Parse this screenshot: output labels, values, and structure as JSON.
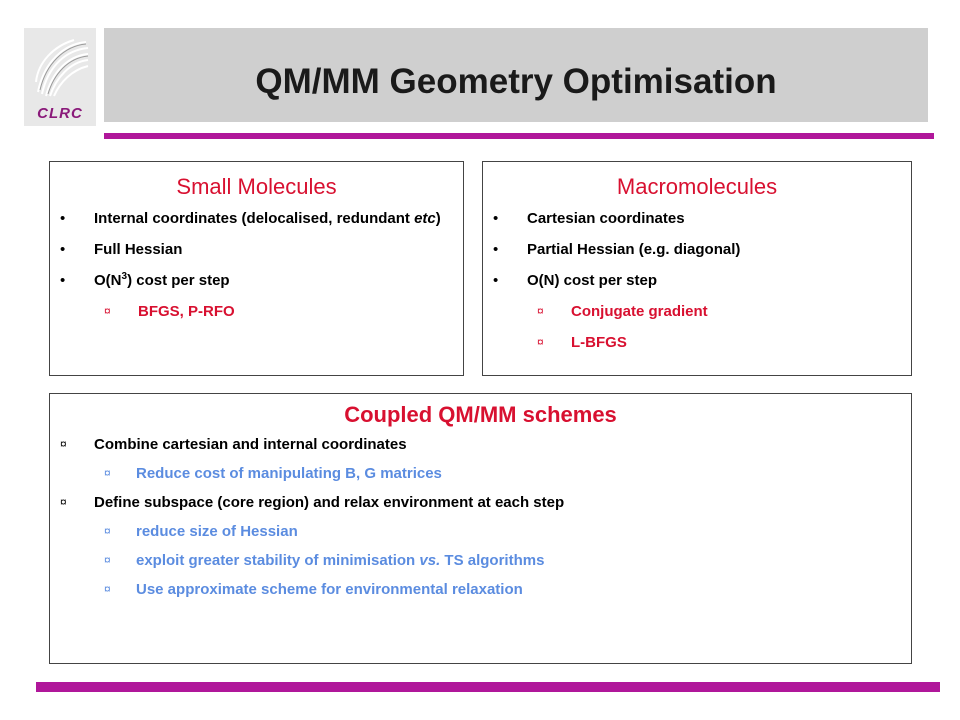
{
  "logo": {
    "text": "CLRC"
  },
  "header": {
    "title": "QM/MM Geometry Optimisation"
  },
  "small_molecules": {
    "title": "Small Molecules",
    "bullet": "•",
    "sub_bullet": "¤",
    "item1_text": "Internal coordinates (delocalised, redundant ",
    "item1_em": "etc",
    "item1_end": ")",
    "item2": "Full Hessian",
    "item3_pre": "O(N",
    "item3_sup": "3",
    "item3_post": ") cost per step",
    "sub1": "BFGS, P-RFO"
  },
  "macromolecules": {
    "title": "Macromolecules",
    "bullet": "•",
    "sub_bullet": "¤",
    "items": [
      "Cartesian coordinates",
      "Partial Hessian (e.g. diagonal)",
      "O(N) cost per step"
    ],
    "subs": [
      "Conjugate gradient",
      "L-BFGS"
    ]
  },
  "coupled": {
    "title": "Coupled QM/MM schemes",
    "bullet": "¤",
    "item1": "Combine cartesian and internal coordinates",
    "item1_sub": "Reduce cost of manipulating B, G matrices",
    "item2": "Define subspace (core region) and relax environment at each step",
    "item2_sub1": "reduce size of Hessian",
    "item2_sub2_pre": "exploit greater stability of minimisation ",
    "item2_sub2_em": "vs.",
    "item2_sub2_post": " TS algorithms",
    "item2_sub3": "Use approximate scheme for environmental relaxation"
  },
  "colors": {
    "accent": "#b0179a",
    "heading_red": "#d81030",
    "sub_blue": "#5b8ce0",
    "title_bar": "#cfcfcf"
  }
}
